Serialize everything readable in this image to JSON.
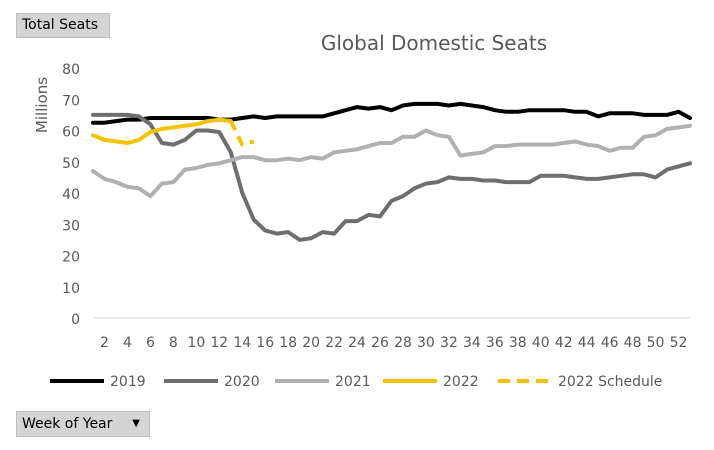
{
  "pivot": {
    "value_field": "Total Seats",
    "axis_field": "Week of Year",
    "dropdown_icon": "triangle-down-icon"
  },
  "chart_data": {
    "type": "line",
    "title": "Global Domestic Seats",
    "xlabel": "",
    "ylabel": "Millions",
    "ylim": [
      0,
      80
    ],
    "yticks": [
      0,
      10,
      20,
      30,
      40,
      50,
      60,
      70,
      80
    ],
    "xlim": [
      1,
      53
    ],
    "xticks": [
      2,
      4,
      6,
      8,
      10,
      12,
      14,
      16,
      18,
      20,
      22,
      24,
      26,
      28,
      30,
      32,
      34,
      36,
      38,
      40,
      42,
      44,
      46,
      48,
      50,
      52
    ],
    "grid": false,
    "legend": "bottom",
    "series": [
      {
        "name": "2019",
        "color": "#000000",
        "dash": "solid",
        "x": [
          1,
          2,
          3,
          4,
          5,
          6,
          7,
          8,
          9,
          10,
          11,
          12,
          13,
          14,
          15,
          16,
          17,
          18,
          19,
          20,
          21,
          22,
          23,
          24,
          25,
          26,
          27,
          28,
          29,
          30,
          31,
          32,
          33,
          34,
          35,
          36,
          37,
          38,
          39,
          40,
          41,
          42,
          43,
          44,
          45,
          46,
          47,
          48,
          49,
          50,
          51,
          52,
          53
        ],
        "values": [
          62.5,
          62.5,
          63,
          63.5,
          63.5,
          64,
          64,
          64,
          64,
          64,
          64,
          63.5,
          63.5,
          64,
          64.5,
          64,
          64.5,
          64.5,
          64.5,
          64.5,
          64.5,
          65.5,
          66.5,
          67.5,
          67,
          67.5,
          66.5,
          68,
          68.5,
          68.5,
          68.5,
          68,
          68.5,
          68,
          67.5,
          66.5,
          66,
          66,
          66.5,
          66.5,
          66.5,
          66.5,
          66,
          66,
          64.5,
          65.5,
          65.5,
          65.5,
          65,
          65,
          65,
          66,
          64
        ]
      },
      {
        "name": "2020",
        "color": "#6e6e6e",
        "dash": "solid",
        "x": [
          1,
          2,
          3,
          4,
          5,
          6,
          7,
          8,
          9,
          10,
          11,
          12,
          13,
          14,
          15,
          16,
          17,
          18,
          19,
          20,
          21,
          22,
          23,
          24,
          25,
          26,
          27,
          28,
          29,
          30,
          31,
          32,
          33,
          34,
          35,
          36,
          37,
          38,
          39,
          40,
          41,
          42,
          43,
          44,
          45,
          46,
          47,
          48,
          49,
          50,
          51,
          52,
          53
        ],
        "values": [
          65,
          65,
          65,
          65,
          64.5,
          62,
          56,
          55.5,
          57,
          60,
          60,
          59.5,
          53,
          40,
          31.5,
          28,
          27,
          27.5,
          25,
          25.5,
          27.5,
          27,
          31,
          31,
          33,
          32.5,
          37.5,
          39,
          41.5,
          43,
          43.5,
          45,
          44.5,
          44.5,
          44,
          44,
          43.5,
          43.5,
          43.5,
          45.5,
          45.5,
          45.5,
          45,
          44.5,
          44.5,
          45,
          45.5,
          46,
          46,
          45,
          47.5,
          48.5,
          49.5
        ]
      },
      {
        "name": "2021",
        "color": "#b0b0b0",
        "dash": "solid",
        "x": [
          1,
          2,
          3,
          4,
          5,
          6,
          7,
          8,
          9,
          10,
          11,
          12,
          13,
          14,
          15,
          16,
          17,
          18,
          19,
          20,
          21,
          22,
          23,
          24,
          25,
          26,
          27,
          28,
          29,
          30,
          31,
          32,
          33,
          34,
          35,
          36,
          37,
          38,
          39,
          40,
          41,
          42,
          43,
          44,
          45,
          46,
          47,
          48,
          49,
          50,
          51,
          52,
          53
        ],
        "values": [
          47,
          44.5,
          43.5,
          42,
          41.5,
          39,
          43,
          43.5,
          47.5,
          48,
          49,
          49.5,
          50.5,
          51.5,
          51.5,
          50.5,
          50.5,
          51,
          50.5,
          51.5,
          51,
          53,
          53.5,
          54,
          55,
          56,
          56,
          58,
          58,
          60,
          58.5,
          58,
          52,
          52.5,
          53,
          55,
          55,
          55.5,
          55.5,
          55.5,
          55.5,
          56,
          56.5,
          55.5,
          55,
          53.5,
          54.5,
          54.5,
          58,
          58.5,
          60.5,
          61,
          61.5
        ]
      },
      {
        "name": "2022",
        "color": "#f2c400",
        "dash": "solid",
        "x": [
          1,
          2,
          3,
          4,
          5,
          6,
          7,
          8,
          9,
          10,
          11,
          12,
          13
        ],
        "values": [
          58.5,
          57,
          56.5,
          56,
          57,
          59.5,
          60.5,
          61,
          61.5,
          62,
          63,
          63.5,
          63
        ]
      },
      {
        "name": "2022 Schedule",
        "color": "#f2c400",
        "dash": "dashed",
        "x": [
          13,
          14,
          15
        ],
        "values": [
          63,
          55.5,
          56.5
        ]
      }
    ]
  }
}
